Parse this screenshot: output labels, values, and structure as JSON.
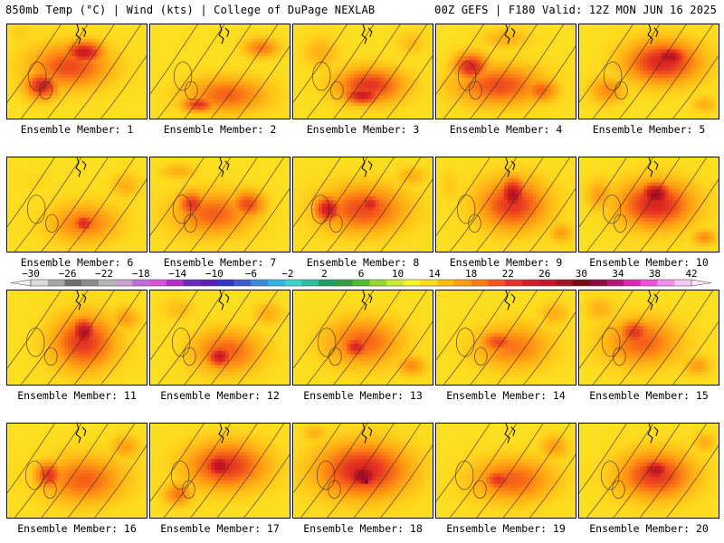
{
  "header": {
    "left": "850mb Temp (°C) | Wind (kts) | College of DuPage NEXLAB",
    "right": "00Z GEFS | F180 Valid: 12Z MON JUN 16 2025"
  },
  "panels": [
    {
      "label": "Ensemble Member: 1",
      "blobs": [
        [
          0.45,
          0.45,
          0.7,
          0.55,
          25
        ],
        [
          0.25,
          0.65,
          0.3,
          0.35,
          27
        ],
        [
          0.55,
          0.3,
          0.35,
          0.3,
          28
        ],
        [
          0.1,
          0.1,
          0.2,
          0.25,
          18
        ]
      ]
    },
    {
      "label": "Ensemble Member: 2",
      "blobs": [
        [
          0.55,
          0.75,
          0.7,
          0.45,
          24
        ],
        [
          0.8,
          0.25,
          0.3,
          0.25,
          23
        ],
        [
          0.2,
          0.2,
          0.35,
          0.3,
          15
        ],
        [
          0.35,
          0.85,
          0.3,
          0.2,
          26
        ]
      ]
    },
    {
      "label": "Ensemble Member: 3",
      "blobs": [
        [
          0.55,
          0.65,
          0.6,
          0.45,
          26
        ],
        [
          0.5,
          0.75,
          0.35,
          0.25,
          28
        ],
        [
          0.2,
          0.3,
          0.3,
          0.4,
          20
        ],
        [
          0.85,
          0.2,
          0.25,
          0.3,
          19
        ]
      ]
    },
    {
      "label": "Ensemble Member: 4",
      "blobs": [
        [
          0.45,
          0.65,
          0.75,
          0.5,
          25
        ],
        [
          0.25,
          0.45,
          0.3,
          0.35,
          27
        ],
        [
          0.75,
          0.7,
          0.3,
          0.3,
          24
        ],
        [
          0.5,
          0.15,
          0.4,
          0.25,
          20
        ]
      ]
    },
    {
      "label": "Ensemble Member: 5",
      "blobs": [
        [
          0.6,
          0.4,
          0.65,
          0.55,
          27
        ],
        [
          0.65,
          0.35,
          0.35,
          0.3,
          29
        ],
        [
          0.2,
          0.7,
          0.3,
          0.35,
          22
        ],
        [
          0.9,
          0.85,
          0.2,
          0.2,
          20
        ]
      ]
    },
    {
      "label": "Ensemble Member: 6",
      "blobs": [
        [
          0.55,
          0.7,
          0.6,
          0.5,
          23
        ],
        [
          0.55,
          0.7,
          0.2,
          0.25,
          27
        ],
        [
          0.2,
          0.25,
          0.35,
          0.3,
          17
        ],
        [
          0.85,
          0.3,
          0.25,
          0.3,
          20
        ]
      ]
    },
    {
      "label": "Ensemble Member: 7",
      "blobs": [
        [
          0.45,
          0.6,
          0.7,
          0.55,
          24
        ],
        [
          0.3,
          0.5,
          0.25,
          0.35,
          26
        ],
        [
          0.7,
          0.5,
          0.3,
          0.35,
          25
        ],
        [
          0.2,
          0.15,
          0.3,
          0.2,
          20
        ]
      ]
    },
    {
      "label": "Ensemble Member: 8",
      "blobs": [
        [
          0.5,
          0.55,
          0.75,
          0.6,
          25
        ],
        [
          0.25,
          0.55,
          0.25,
          0.35,
          28
        ],
        [
          0.55,
          0.5,
          0.25,
          0.3,
          27
        ],
        [
          0.85,
          0.2,
          0.25,
          0.25,
          20
        ]
      ]
    },
    {
      "label": "Ensemble Member: 9",
      "blobs": [
        [
          0.55,
          0.5,
          0.6,
          0.65,
          26
        ],
        [
          0.55,
          0.4,
          0.25,
          0.45,
          29
        ],
        [
          0.1,
          0.3,
          0.2,
          0.4,
          18
        ],
        [
          0.9,
          0.8,
          0.2,
          0.25,
          21
        ]
      ]
    },
    {
      "label": "Ensemble Member: 10",
      "blobs": [
        [
          0.55,
          0.5,
          0.65,
          0.6,
          27
        ],
        [
          0.55,
          0.4,
          0.3,
          0.35,
          30
        ],
        [
          0.15,
          0.4,
          0.25,
          0.4,
          21
        ],
        [
          0.9,
          0.85,
          0.2,
          0.2,
          22
        ]
      ]
    },
    {
      "label": "Ensemble Member: 11",
      "blobs": [
        [
          0.55,
          0.55,
          0.55,
          0.7,
          26
        ],
        [
          0.55,
          0.45,
          0.25,
          0.4,
          29
        ],
        [
          0.12,
          0.15,
          0.25,
          0.25,
          15
        ],
        [
          0.85,
          0.3,
          0.25,
          0.3,
          21
        ]
      ]
    },
    {
      "label": "Ensemble Member: 12",
      "blobs": [
        [
          0.55,
          0.65,
          0.6,
          0.55,
          24
        ],
        [
          0.5,
          0.7,
          0.25,
          0.3,
          28
        ],
        [
          0.2,
          0.2,
          0.3,
          0.3,
          19
        ],
        [
          0.85,
          0.25,
          0.25,
          0.3,
          20
        ]
      ]
    },
    {
      "label": "Ensemble Member: 13",
      "blobs": [
        [
          0.5,
          0.55,
          0.65,
          0.6,
          24
        ],
        [
          0.45,
          0.6,
          0.25,
          0.3,
          27
        ],
        [
          0.1,
          0.1,
          0.25,
          0.25,
          13
        ],
        [
          0.85,
          0.8,
          0.25,
          0.25,
          22
        ]
      ]
    },
    {
      "label": "Ensemble Member: 14",
      "blobs": [
        [
          0.55,
          0.6,
          0.65,
          0.55,
          23
        ],
        [
          0.45,
          0.55,
          0.35,
          0.3,
          25
        ],
        [
          0.15,
          0.15,
          0.25,
          0.25,
          15
        ],
        [
          0.85,
          0.25,
          0.25,
          0.3,
          20
        ]
      ]
    },
    {
      "label": "Ensemble Member: 15",
      "blobs": [
        [
          0.45,
          0.55,
          0.65,
          0.6,
          24
        ],
        [
          0.4,
          0.45,
          0.3,
          0.35,
          26
        ],
        [
          0.85,
          0.8,
          0.25,
          0.25,
          21
        ],
        [
          0.15,
          0.2,
          0.25,
          0.3,
          20
        ]
      ]
    },
    {
      "label": "Ensemble Member: 16",
      "blobs": [
        [
          0.55,
          0.6,
          0.7,
          0.6,
          24
        ],
        [
          0.3,
          0.55,
          0.25,
          0.35,
          26
        ],
        [
          0.08,
          0.15,
          0.2,
          0.25,
          13
        ],
        [
          0.85,
          0.25,
          0.25,
          0.3,
          21
        ]
      ]
    },
    {
      "label": "Ensemble Member: 17",
      "blobs": [
        [
          0.55,
          0.45,
          0.7,
          0.6,
          26
        ],
        [
          0.5,
          0.45,
          0.3,
          0.35,
          29
        ],
        [
          0.1,
          0.15,
          0.2,
          0.25,
          15
        ],
        [
          0.2,
          0.75,
          0.25,
          0.3,
          23
        ]
      ]
    },
    {
      "label": "Ensemble Member: 18",
      "blobs": [
        [
          0.5,
          0.5,
          0.8,
          0.7,
          27
        ],
        [
          0.5,
          0.55,
          0.35,
          0.35,
          30
        ],
        [
          0.52,
          0.6,
          0.1,
          0.12,
          35
        ],
        [
          0.15,
          0.1,
          0.2,
          0.2,
          20
        ]
      ]
    },
    {
      "label": "Ensemble Member: 19",
      "blobs": [
        [
          0.55,
          0.6,
          0.7,
          0.55,
          24
        ],
        [
          0.45,
          0.6,
          0.3,
          0.3,
          26
        ],
        [
          0.1,
          0.1,
          0.2,
          0.2,
          14
        ],
        [
          0.85,
          0.25,
          0.25,
          0.3,
          21
        ]
      ]
    },
    {
      "label": "Ensemble Member: 20",
      "blobs": [
        [
          0.55,
          0.55,
          0.65,
          0.6,
          26
        ],
        [
          0.55,
          0.5,
          0.3,
          0.3,
          29
        ],
        [
          0.1,
          0.1,
          0.2,
          0.25,
          12
        ],
        [
          0.9,
          0.2,
          0.2,
          0.25,
          20
        ]
      ]
    }
  ],
  "colorbar": {
    "labels": [
      "−30",
      "−26",
      "−22",
      "−18",
      "−14",
      "−10",
      "−6",
      "−2",
      "2",
      "6",
      "10",
      "14",
      "18",
      "22",
      "26",
      "30",
      "34",
      "38",
      "42"
    ],
    "colors": [
      "#dcdcdc",
      "#a6a6a6",
      "#6e6e6e",
      "#8c8c8c",
      "#b4b4b4",
      "#c8a0d2",
      "#be6edc",
      "#dc50dc",
      "#b42dc8",
      "#6e28be",
      "#5a1eb4",
      "#3232c8",
      "#3c5ad2",
      "#3c8cdc",
      "#32b4e6",
      "#3cd2d2",
      "#28bea0",
      "#1ea064",
      "#32a03c",
      "#50be32",
      "#96d732",
      "#c8eb32",
      "#f5f532",
      "#ffdc1e",
      "#ffbe14",
      "#ffa014",
      "#ff7d14",
      "#f5551e",
      "#e63228",
      "#d21e28",
      "#c81428",
      "#a01420",
      "#780a14",
      "#8c0a3c",
      "#b41478",
      "#dc28b4",
      "#f050dc",
      "#f58cf0",
      "#f5c8f5"
    ]
  }
}
